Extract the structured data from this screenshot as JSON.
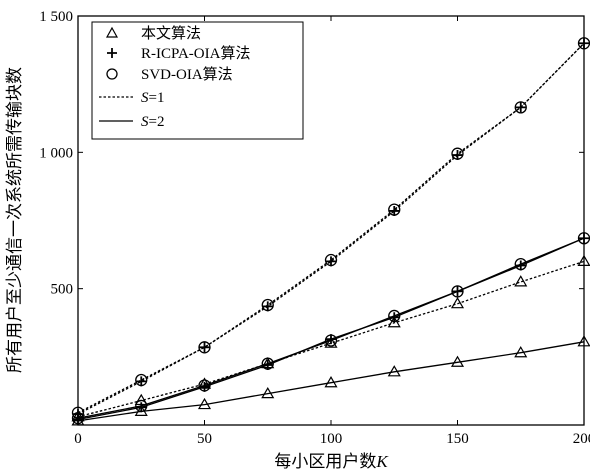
{
  "chart_data": {
    "type": "line",
    "title": "",
    "xlabel_prefix": "每小区用户数",
    "xlabel_var": "K",
    "ylabel": "所有用户至少通信一次系统所需传输块数",
    "xlim": [
      0,
      200
    ],
    "ylim": [
      0,
      1500
    ],
    "xticks": [
      0,
      50,
      100,
      150,
      200
    ],
    "xtick_labels": [
      "0",
      "50",
      "100",
      "150",
      "200"
    ],
    "yticks": [
      500,
      1000,
      1500
    ],
    "ytick_labels": [
      "500",
      "1 000",
      "1 500"
    ],
    "grid": false,
    "legend_position": "top-left",
    "legend": {
      "triangle": "本文算法",
      "plus": "R-ICPA-OIA算法",
      "circle": "SVD-OIA算法",
      "dashed_var": "S",
      "dashed_eq": "=1",
      "solid_var": "S",
      "solid_eq": "=2"
    },
    "series": [
      {
        "marker": "circle",
        "linestyle": "dashed",
        "x": [
          0,
          25,
          50,
          75,
          100,
          125,
          150,
          175,
          200
        ],
        "y": [
          45,
          165,
          285,
          440,
          605,
          790,
          995,
          1165,
          1400
        ]
      },
      {
        "marker": "plus",
        "linestyle": "dashed",
        "x": [
          0,
          25,
          50,
          75,
          100,
          125,
          150,
          175,
          200
        ],
        "y": [
          40,
          160,
          285,
          435,
          600,
          785,
          990,
          1165,
          1400
        ]
      },
      {
        "marker": "triangle",
        "linestyle": "dashed",
        "x": [
          0,
          25,
          50,
          75,
          100,
          125,
          150,
          175,
          200
        ],
        "y": [
          30,
          90,
          150,
          225,
          300,
          375,
          445,
          525,
          600
        ]
      },
      {
        "marker": "circle",
        "linestyle": "solid",
        "x": [
          0,
          25,
          50,
          75,
          100,
          125,
          150,
          175,
          200
        ],
        "y": [
          25,
          70,
          145,
          225,
          310,
          400,
          490,
          590,
          685
        ]
      },
      {
        "marker": "plus",
        "linestyle": "solid",
        "x": [
          0,
          25,
          50,
          75,
          100,
          125,
          150,
          175,
          200
        ],
        "y": [
          20,
          65,
          140,
          220,
          315,
          395,
          490,
          585,
          685
        ]
      },
      {
        "marker": "triangle",
        "linestyle": "solid",
        "x": [
          0,
          25,
          50,
          75,
          100,
          125,
          150,
          175,
          200
        ],
        "y": [
          15,
          50,
          75,
          115,
          155,
          195,
          230,
          265,
          305
        ]
      }
    ]
  }
}
